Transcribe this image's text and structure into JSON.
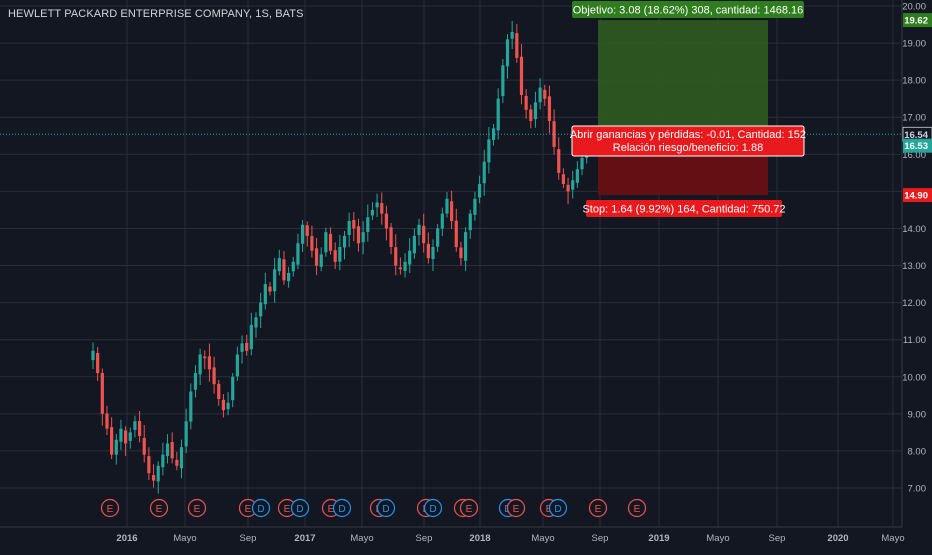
{
  "header": {
    "title": "HEWLETT PACKARD ENTERPRISE COMPANY, 1S, BATS"
  },
  "colors": {
    "background": "#131722",
    "grid": "#2a2e39",
    "text": "#b2b5be",
    "up": "#26a69a",
    "down": "#ef5350",
    "profit_zone": "#2e5a22",
    "loss_zone": "#6a0f14",
    "profit_label": "#2f7d1e",
    "loss_label": "#e81a1d",
    "earnings": "#ef5350",
    "dividend": "#2196f3"
  },
  "chart_data": {
    "type": "candlestick",
    "x_tick_labels": [
      "2016",
      "Mayo",
      "Sep",
      "2017",
      "Mayo",
      "Sep",
      "2018",
      "Mayo",
      "Sep",
      "2019",
      "Mayo",
      "Sep",
      "2020",
      "Mayo"
    ],
    "y_tick_labels": [
      "7.00",
      "8.00",
      "9.00",
      "10.00",
      "11.00",
      "12.00",
      "13.00",
      "14.00",
      "15.00",
      "16.00",
      "17.00",
      "18.00",
      "19.00",
      "20.00"
    ],
    "ylim": [
      6.2,
      20.2
    ],
    "grid": true,
    "price_labels": [
      {
        "value": 19.62,
        "text": "19.62",
        "color": "#2f7d1e"
      },
      {
        "value": 16.54,
        "text": "16.54",
        "color": "#131722"
      },
      {
        "value": 16.53,
        "text": "16.53",
        "color": "#26a69a"
      },
      {
        "value": 14.9,
        "text": "14.90",
        "color": "#e81a1d"
      }
    ],
    "last_price": 16.54,
    "position": {
      "entry": 16.54,
      "target": 19.62,
      "stop": 14.9,
      "objective_label": "Objetivo: 3.08 (18.62%) 308, cantidad: 1468.16",
      "open_pnl_label": "Abrir ganancias y pérdidas: -0.01, Cantidad: 152",
      "risk_reward_label": "Relación riesgo/beneficio: 1.88",
      "stop_label": "Stop: 1.64 (9.92%) 164, Cantidad: 750.72"
    },
    "events": [
      "E",
      "E",
      "E",
      "E",
      "D",
      "E",
      "D",
      "E",
      "D",
      "E",
      "D",
      "E",
      "D",
      "E",
      "E",
      "D",
      "E",
      "E",
      "D",
      "E",
      "E"
    ],
    "series": [
      {
        "name": "price",
        "close": [
          10.7,
          10.1,
          9.0,
          8.6,
          7.9,
          8.3,
          8.6,
          8.2,
          8.5,
          8.8,
          8.4,
          7.9,
          7.4,
          7.2,
          7.6,
          7.9,
          8.2,
          7.8,
          7.6,
          8.1,
          8.8,
          9.6,
          10.1,
          10.6,
          10.5,
          10.2,
          9.8,
          9.4,
          9.1,
          9.3,
          10.0,
          10.6,
          10.9,
          10.7,
          11.4,
          11.6,
          12.0,
          12.5,
          12.3,
          12.9,
          13.2,
          12.6,
          12.8,
          13.1,
          13.6,
          14.1,
          13.8,
          13.4,
          13.0,
          13.3,
          13.9,
          13.4,
          13.1,
          13.5,
          13.8,
          14.2,
          14.0,
          13.6,
          13.9,
          14.3,
          14.5,
          14.7,
          14.4,
          14.0,
          13.5,
          13.0,
          12.9,
          13.1,
          13.4,
          13.8,
          14.1,
          13.6,
          13.2,
          13.5,
          14.0,
          14.4,
          14.8,
          14.2,
          13.5,
          13.2,
          13.9,
          14.4,
          14.8,
          15.2,
          15.8,
          16.4,
          16.7,
          17.5,
          18.4,
          19.1,
          19.3,
          18.6,
          17.6,
          17.2,
          16.9,
          17.4,
          17.8,
          17.5,
          16.9,
          16.2,
          15.5,
          15.2,
          15.0,
          15.3,
          15.6,
          15.9,
          16.2,
          16.5,
          16.54
        ]
      }
    ]
  }
}
